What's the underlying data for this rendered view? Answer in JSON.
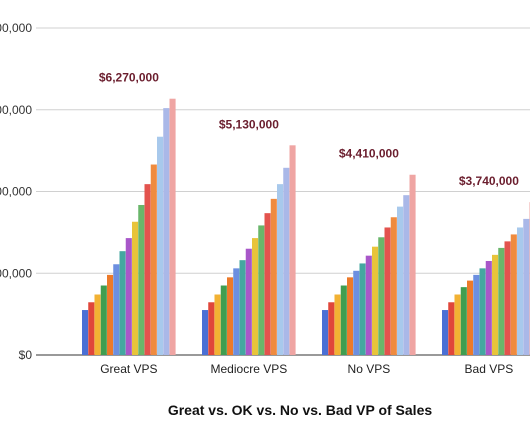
{
  "chart_data": {
    "type": "bar",
    "title": "Great vs. OK vs. No vs. Bad VP of Sales",
    "xlabel": "",
    "ylabel": "",
    "categories": [
      "Great VPS",
      "Mediocre VPS",
      "No VPS",
      "Bad VPS"
    ],
    "y_tick_labels": [
      "$0",
      "00,000",
      "00,000",
      "00,000",
      "00,000"
    ],
    "y_tick_values": [
      0,
      2000000,
      4000000,
      6000000,
      8000000
    ],
    "ylim": [
      0,
      8000000
    ],
    "grid": true,
    "bars_per_category": 15,
    "group_totals": [
      6270000,
      5130000,
      4410000,
      3740000
    ],
    "group_total_labels": [
      "$6,270,000",
      "$5,130,000",
      "$4,410,000",
      "$3,740,000"
    ],
    "series_colors": [
      "#4a6fd4",
      "#e0463a",
      "#f2b233",
      "#3f9e50",
      "#ec7a2a",
      "#6c8fe0",
      "#44a7a0",
      "#a857c9",
      "#e8c43a",
      "#69b66a",
      "#e3534e",
      "#ef8b3f",
      "#a8c9ec",
      "#aab8e8",
      "#efa5a3"
    ],
    "groups": [
      {
        "category": "Great VPS",
        "values": [
          1100000,
          1290000,
          1480000,
          1700000,
          1960000,
          2220000,
          2540000,
          2860000,
          3260000,
          3670000,
          4180000,
          4660000,
          5340000,
          6040000,
          6270000
        ]
      },
      {
        "category": "Mediocre VPS",
        "values": [
          1100000,
          1290000,
          1480000,
          1700000,
          1900000,
          2120000,
          2320000,
          2600000,
          2860000,
          3170000,
          3470000,
          3820000,
          4180000,
          4580000,
          5130000
        ]
      },
      {
        "category": "No VPS",
        "values": [
          1100000,
          1290000,
          1480000,
          1700000,
          1900000,
          2060000,
          2240000,
          2430000,
          2650000,
          2880000,
          3120000,
          3370000,
          3630000,
          3910000,
          4410000
        ]
      },
      {
        "category": "Bad VPS",
        "values": [
          1100000,
          1290000,
          1480000,
          1660000,
          1820000,
          1960000,
          2120000,
          2300000,
          2450000,
          2620000,
          2780000,
          2950000,
          3120000,
          3330000,
          3740000
        ]
      }
    ]
  }
}
